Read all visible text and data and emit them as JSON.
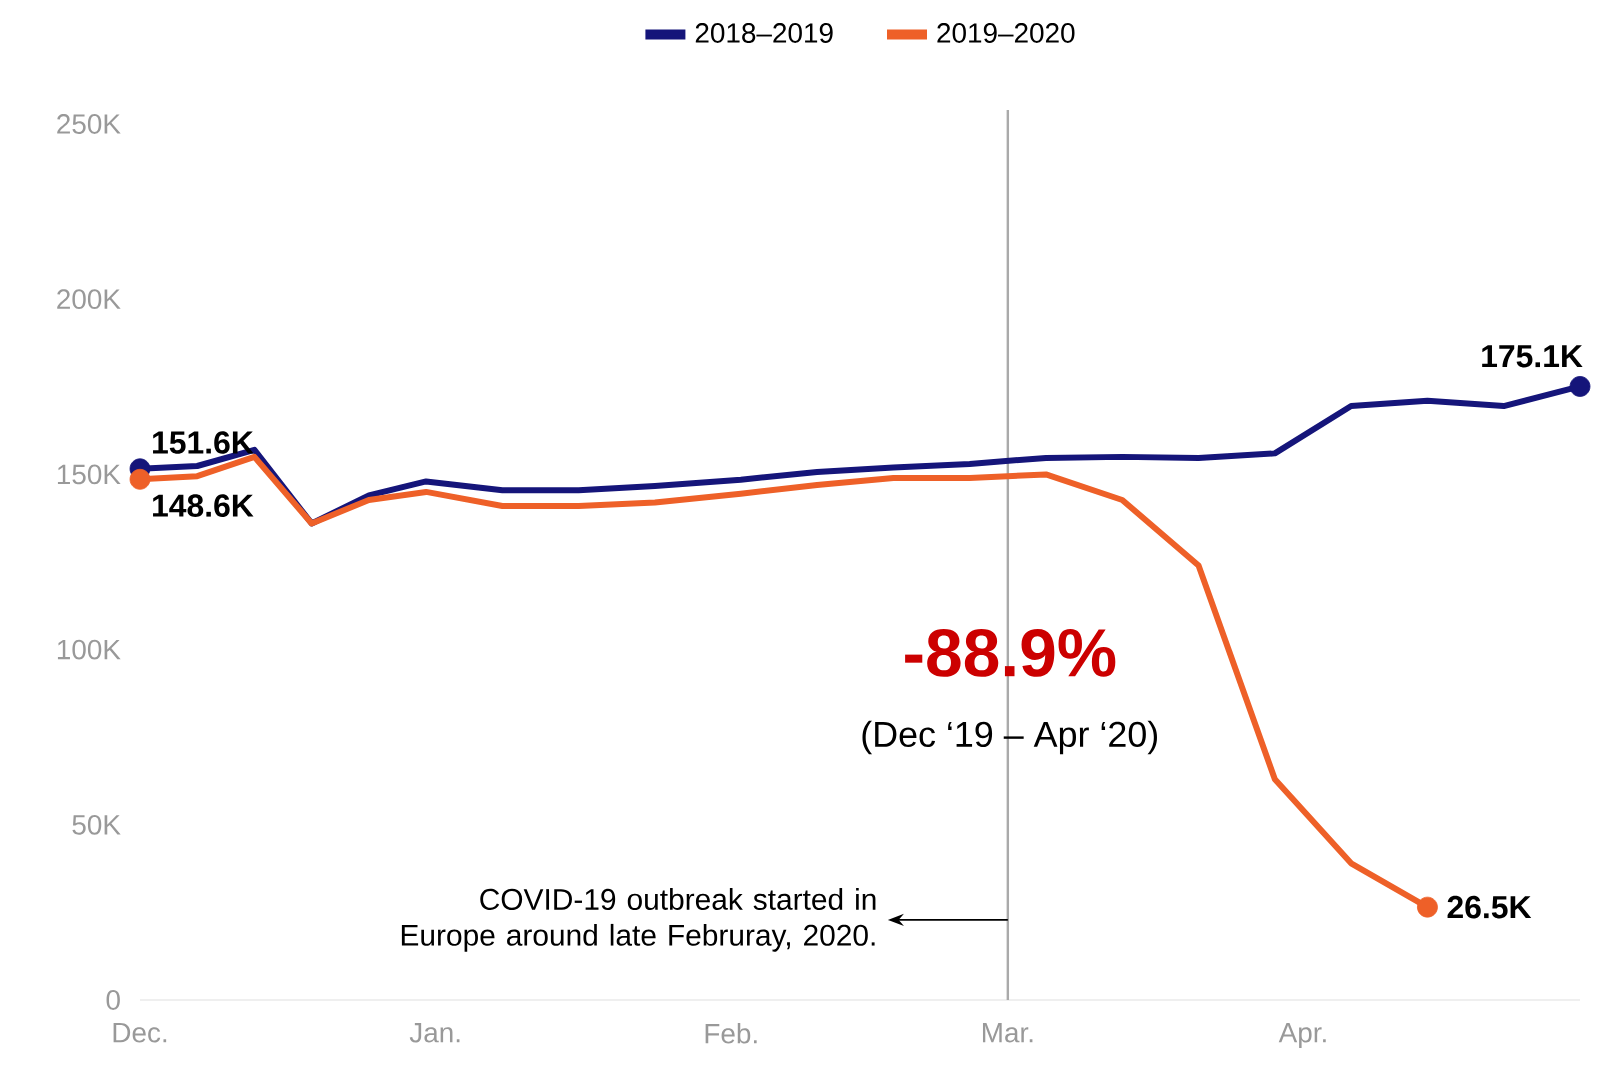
{
  "chart_data": {
    "type": "line",
    "x": [
      "2019-12-01",
      "2019-12-07",
      "2019-12-13",
      "2019-12-19",
      "2019-12-25",
      "2019-12-31",
      "2020-01-08",
      "2020-01-16",
      "2020-01-24",
      "2020-02-02",
      "2020-02-10",
      "2020-02-18",
      "2020-02-26",
      "2020-03-05",
      "2020-03-13",
      "2020-03-21",
      "2020-03-29",
      "2020-04-06",
      "2020-04-14",
      "2020-04-22",
      "2020-04-30"
    ],
    "xlim": [
      "2019-12-01",
      "2020-04-30"
    ],
    "xticks": [
      {
        "value": "2019-12-01",
        "label": "Dec."
      },
      {
        "value": "2020-01-01",
        "label": "Jan."
      },
      {
        "value": "2020-02-01",
        "label": "Feb."
      },
      {
        "value": "2020-03-01",
        "label": "Mar."
      },
      {
        "value": "2020-04-01",
        "label": "Apr."
      }
    ],
    "ylim": [
      0,
      254000
    ],
    "yticks": [
      {
        "value": 0,
        "label": "0"
      },
      {
        "value": 50000,
        "label": "50K"
      },
      {
        "value": 100000,
        "label": "100K"
      },
      {
        "value": 150000,
        "label": "150K"
      },
      {
        "value": 200000,
        "label": "200K"
      },
      {
        "value": 250000,
        "label": "250K"
      }
    ],
    "series": [
      {
        "name": "2018–2019",
        "color": "#15157a",
        "values": [
          151600,
          152400,
          157000,
          136000,
          144000,
          148000,
          145500,
          145500,
          146700,
          148500,
          150700,
          152000,
          153000,
          154700,
          155000,
          154700,
          156000,
          169500,
          171000,
          169500,
          175100
        ],
        "value_labels": [
          "151.6K",
          null,
          null,
          null,
          null,
          null,
          null,
          null,
          null,
          null,
          null,
          null,
          null,
          null,
          null,
          null,
          null,
          null,
          null,
          null,
          "175.1K"
        ]
      },
      {
        "name": "2019–2020",
        "color": "#ee6028",
        "values": [
          148600,
          149500,
          155000,
          136000,
          142700,
          145000,
          141000,
          141000,
          142000,
          144500,
          147000,
          149000,
          149000,
          150000,
          142700,
          124000,
          63000,
          39000,
          26500,
          null,
          null
        ],
        "value_labels": [
          "148.6K",
          null,
          null,
          null,
          null,
          null,
          null,
          null,
          null,
          null,
          null,
          null,
          null,
          null,
          null,
          null,
          null,
          null,
          "26.5K",
          null,
          null
        ]
      }
    ],
    "ref_lines": [
      {
        "axis": "x",
        "value": "2020-03-01",
        "label": "COVID-19 outbreak started in Europe around late Februray, 2020.",
        "color": "#aaaaaa"
      }
    ],
    "annotations": [
      "-88.9%",
      "(Dec ‘19 – Apr ‘20)"
    ],
    "legend": "top"
  }
}
